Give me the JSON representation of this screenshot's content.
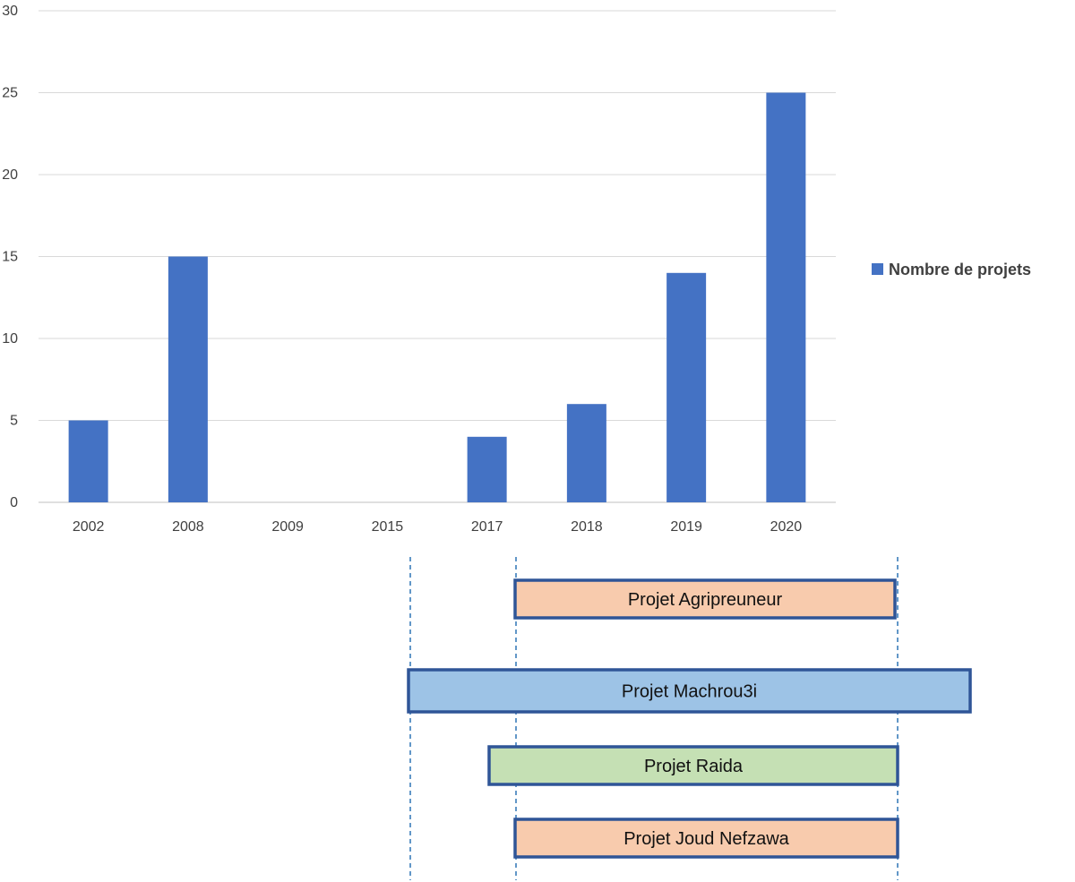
{
  "chart_data": {
    "type": "bar",
    "categories": [
      "2002",
      "2008",
      "2009",
      "2015",
      "2017",
      "2018",
      "2019",
      "2020"
    ],
    "series": [
      {
        "name": "Nombre de projets",
        "color": "#4472C4",
        "values": [
          5,
          15,
          0,
          0,
          4,
          6,
          14,
          25
        ]
      }
    ],
    "y_ticks": [
      "0",
      "5",
      "10",
      "15",
      "20",
      "25",
      "30"
    ],
    "ylim": [
      0,
      30
    ],
    "grid": true,
    "legend_position": "right"
  },
  "timeline": {
    "projects": [
      {
        "label": "Projet Agripreuneur",
        "fill": "#F8CBAD",
        "start": "2017",
        "end": "2020"
      },
      {
        "label": "Projet Machrou3i",
        "fill": "#9DC3E6",
        "start": "2015",
        "end": "2020+"
      },
      {
        "label": "Projet Raida",
        "fill": "#C5E0B4",
        "start": "2017",
        "end": "2020"
      },
      {
        "label": "Projet Joud Nefzawa",
        "fill": "#F8CBAD",
        "start": "2017",
        "end": "2020"
      }
    ],
    "border_color": "#2F5597",
    "guide_color": "#2E75B6"
  }
}
